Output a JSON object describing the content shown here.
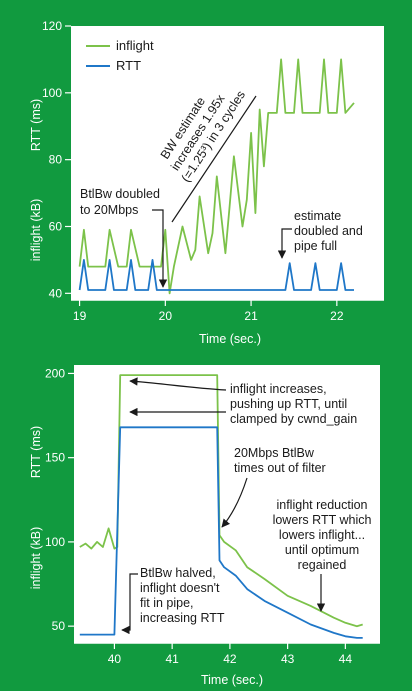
{
  "colors": {
    "background": "#119a3f",
    "inflight": "#7cc24a",
    "rtt": "#1f77c8",
    "annotation": "#1a1a1a"
  },
  "chart_data": [
    {
      "type": "line",
      "xlabel": "Time (sec.)",
      "ylabel_left": "inflight (kB)",
      "ylabel_right": "RTT (ms)",
      "xlim": [
        18.9,
        22.55
      ],
      "ylim": [
        38,
        120
      ],
      "xticks": [
        "19",
        "20",
        "21",
        "22"
      ],
      "yticks": [
        "40",
        "60",
        "80",
        "100",
        "120"
      ],
      "legend_position": "top-left",
      "series": [
        {
          "name": "inflight",
          "x": [
            19,
            19.05,
            19.1,
            19.2,
            19.3,
            19.35,
            19.45,
            19.55,
            19.6,
            19.7,
            19.8,
            19.85,
            19.95,
            20.0,
            20.05,
            20.1,
            20.2,
            20.3,
            20.35,
            20.4,
            20.5,
            20.55,
            20.6,
            20.7,
            20.75,
            20.8,
            20.9,
            20.95,
            21.0,
            21.05,
            21.1,
            21.15,
            21.2,
            21.3,
            21.35,
            21.4,
            21.5,
            21.55,
            21.6,
            21.7,
            21.8,
            21.85,
            21.9,
            22.0,
            22.05,
            22.1,
            22.2
          ],
          "y": [
            48,
            59,
            48,
            48,
            48,
            59,
            48,
            48,
            59,
            48,
            48,
            48,
            48,
            59,
            40,
            48,
            60,
            50,
            53,
            69,
            52,
            58,
            75,
            52,
            66,
            81,
            60,
            68,
            88,
            64,
            95,
            78,
            94,
            94,
            110,
            94,
            94,
            110,
            94,
            94,
            94,
            110,
            94,
            94,
            110,
            94,
            97
          ]
        },
        {
          "name": "RTT",
          "x": [
            19,
            19.05,
            19.1,
            19.3,
            19.35,
            19.4,
            19.55,
            19.6,
            19.65,
            19.8,
            19.85,
            19.9,
            20.0,
            20.5,
            21.0,
            21.4,
            21.45,
            21.5,
            21.7,
            21.75,
            21.8,
            22.0,
            22.05,
            22.1,
            22.2
          ],
          "y": [
            41,
            50,
            41,
            41,
            50,
            41,
            41,
            50,
            41,
            41,
            50,
            41,
            41,
            41,
            41,
            41,
            49,
            41,
            41,
            49,
            41,
            41,
            49,
            41,
            41
          ]
        }
      ],
      "annotations": [
        {
          "text": "BtlBw doubled",
          "text2": "to 20Mbps"
        },
        {
          "text": "BW estimate",
          "text2": "increases 1.95x",
          "text3": "(=1.25³) in 3 cycles"
        },
        {
          "text": "estimate",
          "text2": "doubled and",
          "text3": "pipe full"
        }
      ]
    },
    {
      "type": "line",
      "xlabel": "Time (sec.)",
      "ylabel_left": "inflight (kB)",
      "ylabel_right": "RTT (ms)",
      "xlim": [
        39.3,
        44.6
      ],
      "ylim": [
        40,
        205
      ],
      "xticks": [
        "40",
        "41",
        "42",
        "43",
        "44"
      ],
      "yticks": [
        "50",
        "100",
        "150",
        "200"
      ],
      "series": [
        {
          "name": "inflight",
          "x": [
            39.4,
            39.5,
            39.6,
            39.7,
            39.8,
            39.9,
            40.0,
            40.05,
            40.1,
            40.15,
            40.3,
            40.6,
            41.0,
            41.4,
            41.7,
            41.78,
            41.82,
            41.9,
            42.1,
            42.3,
            42.6,
            43.0,
            43.4,
            43.8,
            44.0,
            44.2,
            44.3
          ],
          "y": [
            97,
            99,
            96,
            100,
            97,
            108,
            96,
            97,
            199,
            199,
            199,
            199,
            199,
            199,
            199,
            199,
            104,
            100,
            95,
            85,
            78,
            68,
            62,
            55,
            52,
            50,
            51
          ]
        },
        {
          "name": "RTT",
          "x": [
            39.4,
            39.5,
            39.6,
            39.7,
            39.8,
            39.9,
            40.0,
            40.1,
            40.15,
            40.3,
            40.6,
            41.0,
            41.4,
            41.7,
            41.78,
            41.82,
            41.9,
            42.1,
            42.3,
            42.6,
            43.0,
            43.4,
            43.8,
            44.0,
            44.2,
            44.3
          ],
          "y": [
            45,
            45,
            45,
            45,
            45,
            45,
            45,
            168,
            168,
            168,
            168,
            168,
            168,
            168,
            168,
            89,
            85,
            80,
            72,
            65,
            58,
            51,
            46,
            44,
            43,
            43
          ]
        }
      ],
      "annotations": [
        {
          "text": "inflight increases,",
          "text2": "pushing up RTT, until",
          "text3": "clamped by cwnd_gain"
        },
        {
          "text": "20Mbps BtlBw",
          "text2": "times out of filter"
        },
        {
          "text": "inflight reduction",
          "text2": "lowers RTT which",
          "text3": "lowers inflight...",
          "text4": "until optimum",
          "text5": "regained"
        },
        {
          "text": "BtlBw halved,",
          "text2": "inflight doesn't",
          "text3": "fit in pipe,",
          "text4": "increasing RTT"
        }
      ]
    }
  ]
}
